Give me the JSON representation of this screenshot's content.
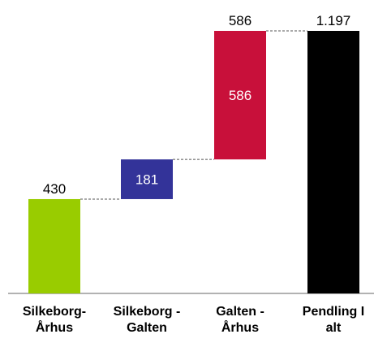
{
  "chart_data": {
    "type": "waterfall",
    "categories": [
      [
        "Silkeborg-",
        "Århus"
      ],
      [
        "Silkeborg -",
        "Galten"
      ],
      [
        "Galten -",
        "Århus"
      ],
      [
        "Pendling I",
        "alt"
      ]
    ],
    "values": [
      430,
      181,
      586,
      1197
    ],
    "total_index": 3,
    "value_labels": [
      "430",
      "181",
      "586",
      "1.197"
    ],
    "inner_labels": [
      "",
      "181",
      "586",
      ""
    ],
    "top_labels": [
      "430",
      "",
      "586",
      "1.197"
    ],
    "colors": [
      "#99cc00",
      "#333399",
      "#c8103a",
      "#000000"
    ],
    "connector_color": "#555555",
    "ylim": [
      0,
      1197
    ],
    "grid": false,
    "legend": false
  }
}
